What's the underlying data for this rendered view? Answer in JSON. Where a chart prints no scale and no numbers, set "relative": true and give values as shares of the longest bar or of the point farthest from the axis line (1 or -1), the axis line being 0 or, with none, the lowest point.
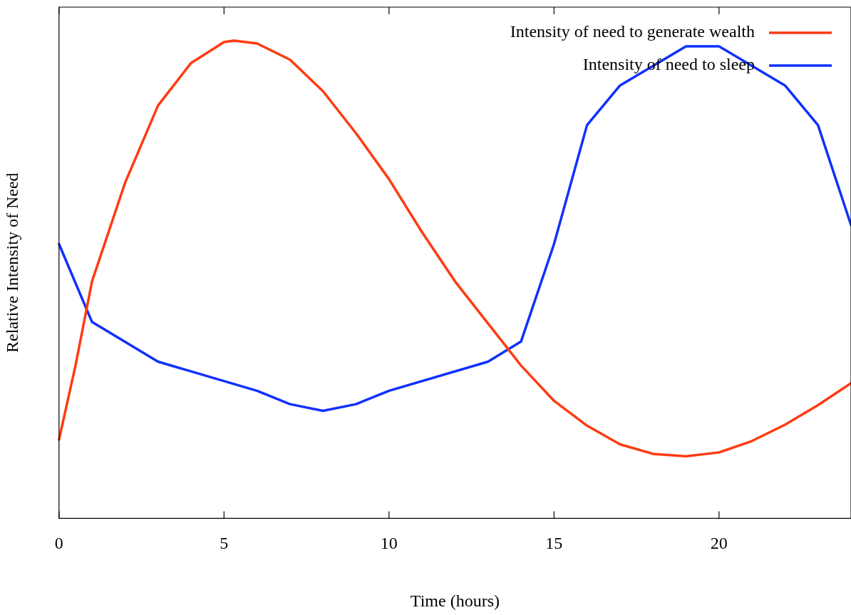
{
  "chart_data": {
    "type": "line",
    "xlabel": "Time (hours)",
    "ylabel": "Relative Intensity of Need",
    "relative": true,
    "xlim": [
      0,
      24
    ],
    "xticks": [
      0,
      5,
      10,
      15,
      20
    ],
    "grid": false,
    "legend": "top right",
    "marker": "none",
    "line_style": "solid",
    "series": [
      {
        "name": "Intensity of need to generate wealth",
        "color": "#ff3a12",
        "x": [
          0,
          0.5,
          1,
          2,
          3,
          4,
          5,
          5.3,
          6,
          7,
          8,
          9,
          10,
          11,
          12,
          13,
          14,
          15,
          16,
          17,
          18,
          19,
          20,
          21,
          22,
          23,
          24
        ],
        "values": [
          0.165,
          0.32,
          0.496,
          0.702,
          0.864,
          0.953,
          0.997,
          1,
          0.994,
          0.96,
          0.894,
          0.806,
          0.71,
          0.599,
          0.496,
          0.408,
          0.32,
          0.246,
          0.194,
          0.155,
          0.135,
          0.13,
          0.138,
          0.162,
          0.196,
          0.237,
          0.283
        ]
      },
      {
        "name": "Intensity of need to sleep",
        "color": "#1030ff",
        "x": [
          0,
          1,
          3,
          6,
          7,
          8,
          9,
          10,
          13,
          14,
          15,
          16,
          17,
          19,
          20,
          22,
          23,
          24
        ],
        "values": [
          0.574,
          0.411,
          0.328,
          0.267,
          0.239,
          0.225,
          0.239,
          0.267,
          0.328,
          0.37,
          0.574,
          0.823,
          0.906,
          0.988,
          0.988,
          0.906,
          0.823,
          0.614
        ]
      }
    ]
  }
}
